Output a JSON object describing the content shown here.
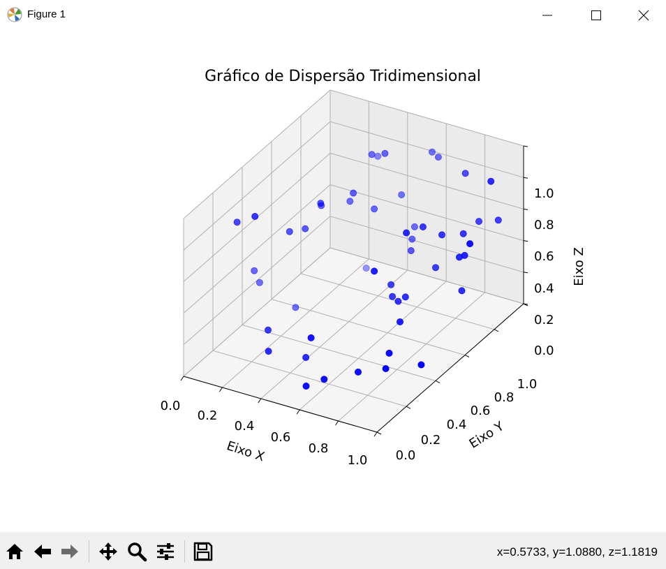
{
  "window": {
    "title": "Figure 1"
  },
  "toolbar": {
    "buttons": [
      "home-icon",
      "back-icon",
      "forward-icon",
      "pan-icon",
      "zoom-icon",
      "configure-icon",
      "save-icon"
    ],
    "coords": "x=0.5733, y=1.0880, z=1.1819"
  },
  "colors": {
    "marker": "#0000ff",
    "pane": "#f2f2f2",
    "grid": "#b0b0b0",
    "toolbar": "#f0f0f0"
  },
  "chart_data": {
    "type": "scatter",
    "projection": "3d",
    "title": "Gráfico de Dispersão Tridimensional",
    "xlabel": "Eixo X",
    "ylabel": "Eixo Y",
    "zlabel": "Eixo Z",
    "xlim": [
      0,
      1
    ],
    "ylim": [
      0,
      1
    ],
    "zlim": [
      0,
      1
    ],
    "xticks": [
      "0.0",
      "0.2",
      "0.4",
      "0.6",
      "0.8",
      "1.0"
    ],
    "yticks": [
      "0.0",
      "0.2",
      "0.4",
      "0.6",
      "0.8",
      "1.0"
    ],
    "zticks": [
      "0.0",
      "0.2",
      "0.4",
      "0.6",
      "0.8",
      "1.0"
    ],
    "grid": true,
    "marker_color": "#0000ff",
    "points": [
      {
        "x": 0.1,
        "y": 0.35,
        "z": 0.42
      },
      {
        "x": 0.09,
        "y": 0.4,
        "z": 0.3
      },
      {
        "x": 0.14,
        "y": 0.18,
        "z": 0.88
      },
      {
        "x": 0.24,
        "y": 0.17,
        "z": 0.96
      },
      {
        "x": 0.26,
        "y": 0.38,
        "z": 0.7
      },
      {
        "x": 0.28,
        "y": 0.46,
        "z": 0.66
      },
      {
        "x": 0.31,
        "y": 0.53,
        "z": 0.76
      },
      {
        "x": 0.36,
        "y": 0.46,
        "z": 0.85
      },
      {
        "x": 0.4,
        "y": 0.63,
        "z": 0.79
      },
      {
        "x": 0.36,
        "y": 0.66,
        "z": 0.7
      },
      {
        "x": 0.44,
        "y": 0.72,
        "z": 0.63
      },
      {
        "x": 0.36,
        "y": 0.85,
        "z": 0.83
      },
      {
        "x": 0.42,
        "y": 0.73,
        "z": 0.96
      },
      {
        "x": 0.48,
        "y": 0.74,
        "z": 0.98
      },
      {
        "x": 0.58,
        "y": 0.93,
        "z": 0.87
      },
      {
        "x": 0.62,
        "y": 0.92,
        "z": 0.86
      },
      {
        "x": 0.49,
        "y": 0.84,
        "z": 0.64
      },
      {
        "x": 0.27,
        "y": 0.22,
        "z": 0.21
      },
      {
        "x": 0.31,
        "y": 0.17,
        "z": 0.13
      },
      {
        "x": 0.2,
        "y": 0.5,
        "z": 0.1
      },
      {
        "x": 0.3,
        "y": 0.85,
        "z": 0.1
      },
      {
        "x": 0.55,
        "y": 0.85,
        "z": 0.45
      },
      {
        "x": 0.56,
        "y": 0.82,
        "z": 0.4
      },
      {
        "x": 0.6,
        "y": 0.76,
        "z": 0.39
      },
      {
        "x": 0.72,
        "y": 0.57,
        "z": 0.7
      },
      {
        "x": 0.73,
        "y": 0.67,
        "z": 0.66
      },
      {
        "x": 0.66,
        "y": 0.43,
        "z": 0.55
      },
      {
        "x": 0.79,
        "y": 0.88,
        "z": 0.85
      },
      {
        "x": 0.79,
        "y": 0.72,
        "z": 0.59
      },
      {
        "x": 0.84,
        "y": 0.8,
        "z": 0.55
      },
      {
        "x": 0.86,
        "y": 0.88,
        "z": 0.57
      },
      {
        "x": 0.88,
        "y": 0.72,
        "z": 0.48
      },
      {
        "x": 0.9,
        "y": 0.73,
        "z": 0.49
      },
      {
        "x": 0.96,
        "y": 0.83,
        "z": 0.9
      },
      {
        "x": 0.93,
        "y": 0.92,
        "z": 0.57
      },
      {
        "x": 0.87,
        "y": 0.75,
        "z": 0.24
      },
      {
        "x": 0.98,
        "y": 0.66,
        "z": 0.65
      },
      {
        "x": 0.61,
        "y": 0.61,
        "z": 0.3
      },
      {
        "x": 0.64,
        "y": 0.58,
        "z": 0.26
      },
      {
        "x": 0.7,
        "y": 0.59,
        "z": 0.27
      },
      {
        "x": 0.67,
        "y": 0.58,
        "z": 0.24
      },
      {
        "x": 0.74,
        "y": 0.5,
        "z": 0.2
      },
      {
        "x": 0.75,
        "y": 0.73,
        "z": 0.36
      },
      {
        "x": 0.42,
        "y": 0.28,
        "z": 0.04
      },
      {
        "x": 0.56,
        "y": 0.22,
        "z": 0.0
      },
      {
        "x": 0.66,
        "y": 0.32,
        "z": 0.0
      },
      {
        "x": 0.78,
        "y": 0.35,
        "z": 0.04
      },
      {
        "x": 0.76,
        "y": 0.4,
        "z": 0.09
      },
      {
        "x": 0.88,
        "y": 0.46,
        "z": 0.01
      },
      {
        "x": 0.52,
        "y": 0.15,
        "z": 0.0
      },
      {
        "x": 0.5,
        "y": 0.21,
        "z": 0.25
      }
    ]
  }
}
